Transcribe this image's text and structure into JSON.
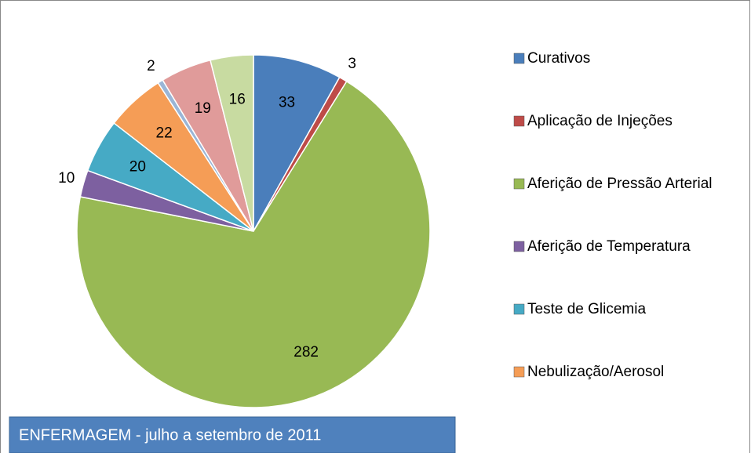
{
  "chart_data": {
    "type": "pie",
    "title": "ENFERMAGEM - julho a setembro de 2011",
    "categories": [
      "Curativos",
      "Aplicação de Injeções",
      "Aferição de Pressão Arterial",
      "Aferição de Temperatura",
      "Teste de Glicemia",
      "Nebulização/Aerosol",
      null,
      null,
      null
    ],
    "values": [
      33,
      3,
      282,
      10,
      20,
      22,
      2,
      19,
      16
    ],
    "colors": [
      "#4a7ebb",
      "#be4b48",
      "#98b954",
      "#7d60a0",
      "#46aac5",
      "#f59d56",
      "#9ab5d6",
      "#e09b9a",
      "#c8dba1"
    ]
  }
}
